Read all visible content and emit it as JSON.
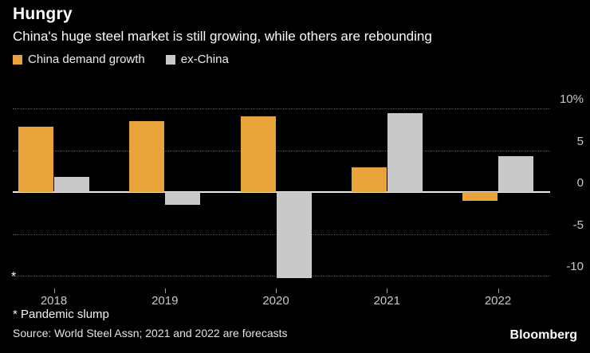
{
  "header": {
    "title": "Hungry",
    "subtitle": "China's huge steel market is still growing, while others are rebounding"
  },
  "legend": [
    {
      "label": "China demand growth",
      "color": "#E8A33B"
    },
    {
      "label": "ex-China",
      "color": "#C9C9C9"
    }
  ],
  "chart_data": {
    "type": "bar",
    "title": "Hungry",
    "subtitle": "China's huge steel market is still growing, while others are rebounding",
    "categories": [
      "2018",
      "2019",
      "2020",
      "2021",
      "2022"
    ],
    "series": [
      {
        "name": "China demand growth",
        "color": "#E8A33B",
        "values": [
          7.8,
          8.5,
          9.1,
          3.0,
          -1.0
        ]
      },
      {
        "name": "ex-China",
        "color": "#C9C9C9",
        "values": [
          1.8,
          -1.5,
          -10.3,
          9.5,
          4.3
        ]
      }
    ],
    "xlabel": "",
    "ylabel": "",
    "ylim": [
      -11.5,
      12.5
    ],
    "yticks": [
      10,
      5,
      0,
      -5,
      -10
    ],
    "ytick_labels": [
      "10%",
      "5",
      "0",
      "-5",
      "-10"
    ],
    "grid": "dotted horizontal, solid zero line",
    "legend_position": "top-left",
    "annotation": {
      "marker": "*",
      "note": "Pandemic slump",
      "target": "ex-China 2020 bar"
    }
  },
  "footnote": "* Pandemic slump",
  "source": "Source: World Steel Assn; 2021 and 2022 are forecasts",
  "branding": "Bloomberg"
}
